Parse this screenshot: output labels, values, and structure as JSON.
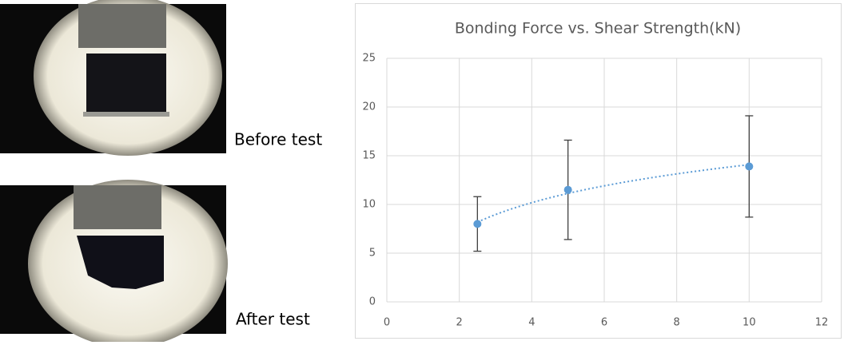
{
  "captions": [
    "Before test",
    "After test"
  ],
  "chart_data": {
    "type": "scatter",
    "title": "Bonding Force vs. Shear Strength(kN)",
    "x": [
      2.5,
      5,
      10
    ],
    "series": [
      {
        "color": "#5b9bd5",
        "values": [
          8.0,
          11.5,
          13.9
        ],
        "errors": [
          2.8,
          5.1,
          5.2
        ]
      }
    ],
    "trendline": "logarithmic",
    "xlim": [
      0,
      12
    ],
    "xticks": [
      0,
      2,
      4,
      6,
      8,
      10,
      12
    ],
    "ylim": [
      0,
      25
    ],
    "yticks": [
      0,
      5,
      10,
      15,
      20,
      25
    ],
    "grid": true
  }
}
